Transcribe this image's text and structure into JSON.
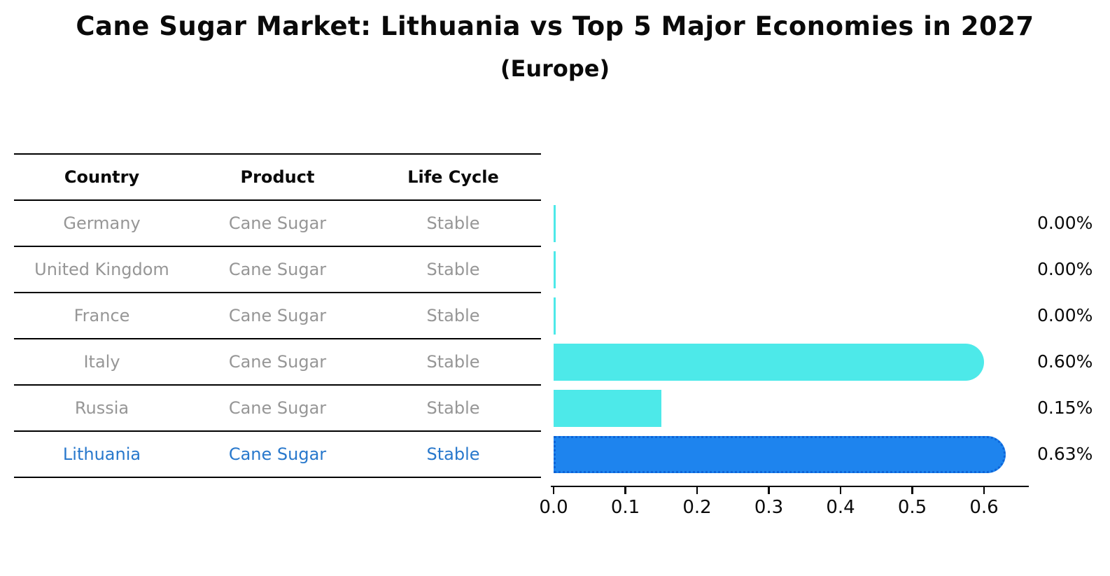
{
  "title": "Cane Sugar Market: Lithuania vs Top 5 Major Economies in 2027",
  "subtitle": "(Europe)",
  "table": {
    "headers": [
      "Country",
      "Product",
      "Life Cycle"
    ],
    "rows": [
      {
        "country": "Germany",
        "product": "Cane Sugar",
        "life_cycle": "Stable",
        "highlighted": false
      },
      {
        "country": "United Kingdom",
        "product": "Cane Sugar",
        "life_cycle": "Stable",
        "highlighted": false
      },
      {
        "country": "France",
        "product": "Cane Sugar",
        "life_cycle": "Stable",
        "highlighted": false
      },
      {
        "country": "Italy",
        "product": "Cane Sugar",
        "life_cycle": "Stable",
        "highlighted": false
      },
      {
        "country": "Russia",
        "product": "Cane Sugar",
        "life_cycle": "Stable",
        "highlighted": false
      },
      {
        "country": "Lithuania",
        "product": "Cane Sugar",
        "life_cycle": "Stable",
        "highlighted": true
      }
    ]
  },
  "chart_data": {
    "type": "bar",
    "orientation": "horizontal",
    "title": "Cane Sugar Market: Lithuania vs Top 5 Major Economies in 2027",
    "subtitle": "(Europe)",
    "categories": [
      "Germany",
      "United Kingdom",
      "France",
      "Italy",
      "Russia",
      "Lithuania"
    ],
    "values": [
      0.0,
      0.0,
      0.0,
      0.6,
      0.15,
      0.63
    ],
    "value_labels": [
      "0.00%",
      "0.00%",
      "0.00%",
      "0.60%",
      "0.15%",
      "0.63%"
    ],
    "unit": "%",
    "x_tick_labels": [
      "0.0",
      "0.1",
      "0.2",
      "0.3",
      "0.4",
      "0.5",
      "0.6"
    ],
    "xlim": [
      0.0,
      0.655
    ],
    "grid": false,
    "legend": false,
    "highlight_index": 5
  },
  "colors": {
    "bar_color": "#4DE9E9",
    "highlight_bar_color": "#1E84EE",
    "highlight_border_color": "#0D64D8",
    "table_text": "#969696",
    "highlight_text": "#2878CC",
    "line_color": "#000000"
  }
}
